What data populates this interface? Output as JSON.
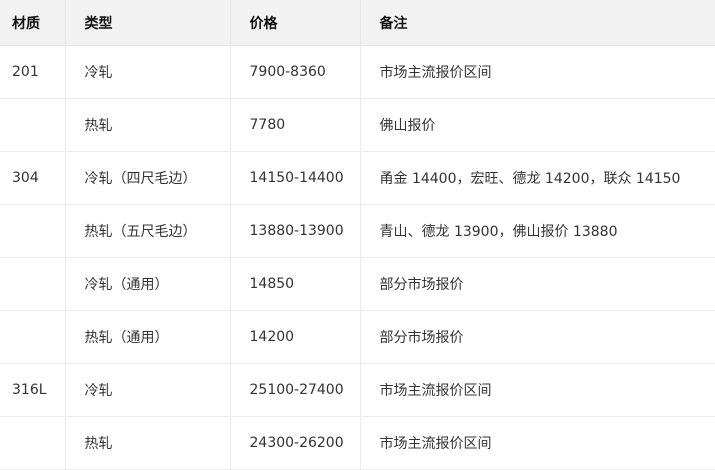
{
  "table": {
    "headers": [
      "材质",
      "类型",
      "价格",
      "备注"
    ],
    "rows": [
      [
        "201",
        "冷轧",
        "7900-8360",
        "市场主流报价区间"
      ],
      [
        "",
        "热轧",
        "7780",
        "佛山报价"
      ],
      [
        "304",
        "冷轧（四尺毛边）",
        "14150-14400",
        "甬金 14400，宏旺、德龙 14200，联众 14150"
      ],
      [
        "",
        "热轧（五尺毛边）",
        "13880-13900",
        "青山、德龙 13900，佛山报价 13880"
      ],
      [
        "",
        "冷轧（通用）",
        "14850",
        "部分市场报价"
      ],
      [
        "",
        "热轧（通用）",
        "14200",
        "部分市场报价"
      ],
      [
        "316L",
        "冷轧",
        "25100-27400",
        "市场主流报价区间"
      ],
      [
        "",
        "热轧",
        "24300-26200",
        "市场主流报价区间"
      ]
    ]
  }
}
